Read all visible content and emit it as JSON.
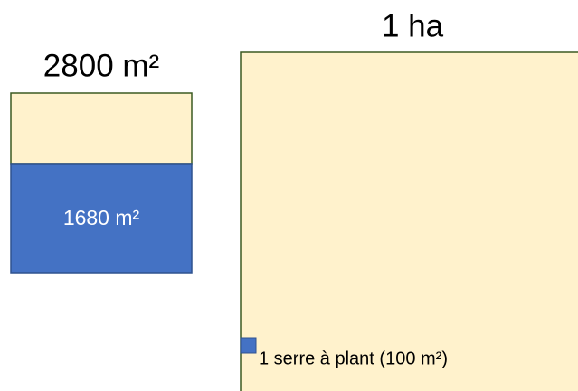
{
  "left_box": {
    "title": "2800 m²",
    "inner_label": "1680 m²"
  },
  "right_box": {
    "title": "1 ha",
    "inner_label": "1 serre à plant (100 m²)"
  }
}
